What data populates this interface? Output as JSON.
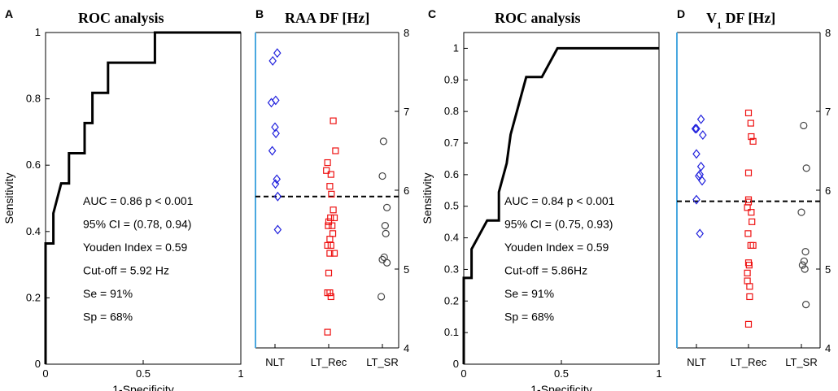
{
  "chart_data": [
    {
      "panel": "A",
      "type": "line",
      "title": "ROC analysis",
      "xlabel": "1-Specificity",
      "ylabel": "Sensitivity",
      "xlim": [
        0,
        1
      ],
      "ylim": [
        0,
        1
      ],
      "xticks": [
        "0",
        "0.5",
        "1"
      ],
      "yticks": [
        "0",
        "0.2",
        "0.4",
        "0.6",
        "0.8",
        "1"
      ],
      "series": [
        {
          "name": "ROC",
          "x": [
            0,
            0,
            0.04,
            0.04,
            0.08,
            0.08,
            0.12,
            0.12,
            0.2,
            0.2,
            0.24,
            0.24,
            0.32,
            0.32,
            0.56,
            0.56,
            1.0
          ],
          "y": [
            0,
            0.364,
            0.364,
            0.455,
            0.545,
            0.545,
            0.545,
            0.636,
            0.636,
            0.727,
            0.727,
            0.818,
            0.818,
            0.909,
            0.909,
            1.0,
            1.0
          ]
        }
      ],
      "annotations": [
        "AUC = 0.86  p < 0.001",
        "95% CI = (0.78, 0.94)",
        "Youden Index = 0.59",
        "Cut-off = 5.92 Hz",
        "Se = 91%",
        "Sp = 68%"
      ]
    },
    {
      "panel": "B",
      "type": "scatter",
      "title": "RAA DF [Hz]",
      "categories": [
        "NLT",
        "LT_Rec",
        "LT_SR"
      ],
      "ylim": [
        4,
        8
      ],
      "yticks": [
        "4",
        "5",
        "6",
        "7",
        "8"
      ],
      "cutoff": 5.92,
      "series": [
        {
          "name": "NLT",
          "marker": "diamond",
          "color": "#2222dd",
          "points": [
            [
              -0.1,
              7.64
            ],
            [
              0.1,
              7.74
            ],
            [
              -0.16,
              7.11
            ],
            [
              0.03,
              7.14
            ],
            [
              0.0,
              6.8
            ],
            [
              0.04,
              6.72
            ],
            [
              -0.12,
              6.5
            ],
            [
              0.08,
              6.14
            ],
            [
              0.02,
              6.08
            ],
            [
              0.12,
              5.92
            ],
            [
              0.12,
              5.5
            ]
          ]
        },
        {
          "name": "LT_Rec",
          "marker": "square",
          "color": "#ee1111",
          "points": [
            [
              0.2,
              6.88
            ],
            [
              0.3,
              6.5
            ],
            [
              -0.05,
              6.35
            ],
            [
              0.1,
              6.2
            ],
            [
              -0.1,
              6.25
            ],
            [
              0.05,
              6.05
            ],
            [
              0.12,
              5.95
            ],
            [
              0.2,
              5.75
            ],
            [
              0.08,
              5.65
            ],
            [
              0.25,
              5.65
            ],
            [
              0.0,
              5.6
            ],
            [
              -0.02,
              5.55
            ],
            [
              0.15,
              5.55
            ],
            [
              0.18,
              5.45
            ],
            [
              0.05,
              5.38
            ],
            [
              0.1,
              5.3
            ],
            [
              -0.05,
              5.3
            ],
            [
              0.25,
              5.2
            ],
            [
              0.05,
              5.2
            ],
            [
              0.0,
              4.95
            ],
            [
              0.05,
              4.7
            ],
            [
              -0.05,
              4.7
            ],
            [
              0.1,
              4.65
            ],
            [
              -0.05,
              4.2
            ]
          ]
        },
        {
          "name": "LT_SR",
          "marker": "circle",
          "color": "#444444",
          "points": [
            [
              0.05,
              6.62
            ],
            [
              0.0,
              6.18
            ],
            [
              0.2,
              5.78
            ],
            [
              0.12,
              5.55
            ],
            [
              0.15,
              5.45
            ],
            [
              0.08,
              5.15
            ],
            [
              0.0,
              5.12
            ],
            [
              0.2,
              5.08
            ],
            [
              -0.05,
              4.65
            ]
          ]
        }
      ]
    },
    {
      "panel": "C",
      "type": "line",
      "title": "ROC analysis",
      "xlabel": "1-Specificity",
      "ylabel": "Sensitivity",
      "xlim": [
        0,
        1
      ],
      "ylim": [
        0,
        1.05
      ],
      "xticks": [
        "0",
        "0.5",
        "1"
      ],
      "yticks": [
        "0",
        "0.1",
        "0.2",
        "0.3",
        "0.4",
        "0.5",
        "0.6",
        "0.7",
        "0.8",
        "0.9",
        "1"
      ],
      "series": [
        {
          "name": "ROC",
          "x": [
            0,
            0,
            0.04,
            0.04,
            0.12,
            0.12,
            0.18,
            0.18,
            0.22,
            0.24,
            0.32,
            0.36,
            0.4,
            0.48,
            0.48,
            1.0
          ],
          "y": [
            0,
            0.273,
            0.273,
            0.364,
            0.455,
            0.455,
            0.455,
            0.545,
            0.636,
            0.727,
            0.909,
            0.909,
            0.909,
            1.0,
            1.0,
            1.0
          ]
        }
      ],
      "annotations": [
        "AUC = 0.84  p < 0.001",
        "95% CI = (0.75, 0.93)",
        "Youden Index = 0.59",
        "Cut-off = 5.86Hz",
        "Se = 91%",
        "Sp = 68%"
      ]
    },
    {
      "panel": "D",
      "type": "scatter",
      "title_main": "V",
      "title_sub": "1",
      "title_rest": " DF [Hz]",
      "categories": [
        "NLT",
        "LT_Rec",
        "LT_SR"
      ],
      "ylim": [
        4,
        8
      ],
      "yticks": [
        "4",
        "5",
        "6",
        "7",
        "8"
      ],
      "cutoff": 5.86,
      "series": [
        {
          "name": "NLT",
          "marker": "diamond",
          "color": "#2222dd",
          "points": [
            [
              -0.05,
              6.78
            ],
            [
              0.0,
              6.78
            ],
            [
              0.2,
              6.9
            ],
            [
              0.28,
              6.7
            ],
            [
              0.0,
              6.46
            ],
            [
              0.2,
              6.3
            ],
            [
              0.15,
              6.2
            ],
            [
              0.25,
              6.12
            ],
            [
              0.1,
              6.18
            ],
            [
              0.0,
              5.88
            ],
            [
              0.15,
              5.45
            ]
          ]
        },
        {
          "name": "LT_Rec",
          "marker": "square",
          "color": "#ee1111",
          "points": [
            [
              0.0,
              6.98
            ],
            [
              0.1,
              6.85
            ],
            [
              0.12,
              6.68
            ],
            [
              0.2,
              6.62
            ],
            [
              0.0,
              6.22
            ],
            [
              0.0,
              5.88
            ],
            [
              0.0,
              5.85
            ],
            [
              -0.05,
              5.78
            ],
            [
              0.12,
              5.72
            ],
            [
              0.15,
              5.6
            ],
            [
              -0.02,
              5.45
            ],
            [
              0.1,
              5.3
            ],
            [
              0.2,
              5.3
            ],
            [
              0.0,
              5.08
            ],
            [
              0.03,
              5.05
            ],
            [
              -0.05,
              4.95
            ],
            [
              -0.05,
              4.85
            ],
            [
              0.05,
              4.78
            ],
            [
              0.05,
              4.65
            ],
            [
              0.0,
              4.3
            ]
          ]
        },
        {
          "name": "LT_SR",
          "marker": "circle",
          "color": "#444444",
          "points": [
            [
              0.1,
              6.82
            ],
            [
              0.22,
              6.28
            ],
            [
              0.0,
              5.72
            ],
            [
              0.18,
              5.22
            ],
            [
              0.12,
              5.1
            ],
            [
              0.05,
              5.05
            ],
            [
              0.15,
              5.0
            ],
            [
              0.2,
              4.55
            ]
          ]
        }
      ]
    }
  ]
}
